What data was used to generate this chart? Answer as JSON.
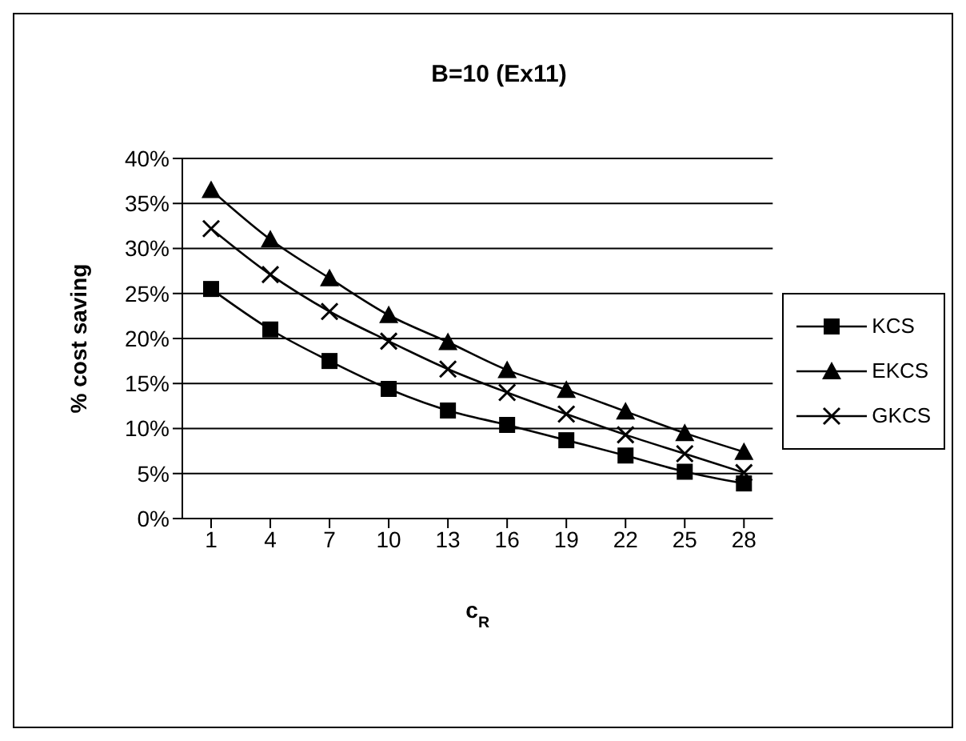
{
  "chart_data": {
    "type": "line",
    "title": "B=10 (Ex11)",
    "xlabel": "c$_{R}$",
    "ylabel": "% cost saving",
    "categories": [
      "1",
      "4",
      "7",
      "10",
      "13",
      "16",
      "19",
      "22",
      "25",
      "28"
    ],
    "series": [
      {
        "name": "KCS",
        "color": "#000000",
        "marker": "square",
        "values": [
          25.5,
          21,
          17.5,
          14.4,
          12,
          10.4,
          8.7,
          7,
          5.2,
          3.9
        ]
      },
      {
        "name": "EKCS",
        "color": "#000000",
        "marker": "triangle",
        "values": [
          36.5,
          31,
          26.7,
          22.6,
          19.6,
          16.5,
          14.3,
          11.9,
          9.5,
          7.4
        ]
      },
      {
        "name": "GKCS",
        "color": "#000000",
        "marker": "cross",
        "values": [
          32.2,
          27.1,
          23,
          19.7,
          16.6,
          14,
          11.6,
          9.3,
          7.2,
          5.1
        ]
      }
    ],
    "ylim": [
      0,
      40
    ],
    "yticks": [
      {
        "value": 0,
        "label": "0%"
      },
      {
        "value": 5,
        "label": "5%"
      },
      {
        "value": 10,
        "label": "10%"
      },
      {
        "value": 15,
        "label": "15%"
      },
      {
        "value": 20,
        "label": "20%"
      },
      {
        "value": 25,
        "label": "25%"
      },
      {
        "value": 30,
        "label": "30%"
      },
      {
        "value": 35,
        "label": "35%"
      },
      {
        "value": 40,
        "label": "40%"
      }
    ],
    "grid": "y",
    "legend": "right",
    "line_style": "solid"
  }
}
